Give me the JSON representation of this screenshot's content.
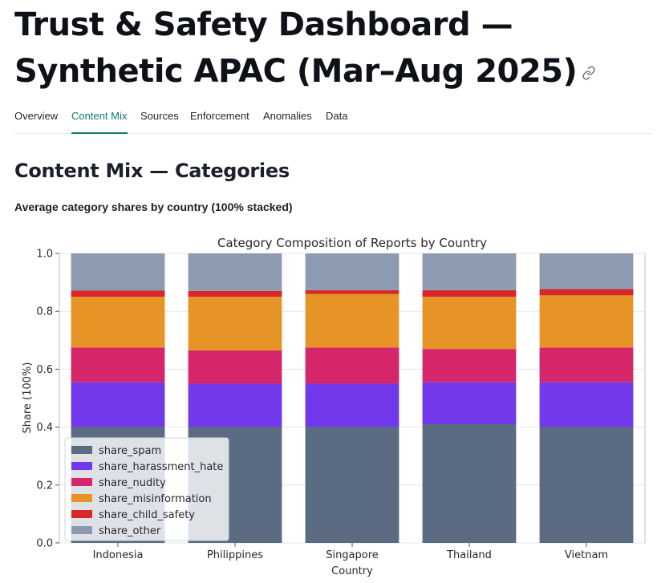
{
  "header": {
    "title": "Trust & Safety Dashboard — Synthetic APAC (Mar–Aug 2025)",
    "link_icon": "link-icon"
  },
  "tabs": [
    {
      "label": "Overview",
      "active": false
    },
    {
      "label": "Content Mix",
      "active": true
    },
    {
      "label": "Sources",
      "active": false
    },
    {
      "label": "Enforcement",
      "active": false
    },
    {
      "label": "Anomalies",
      "active": false
    },
    {
      "label": "Data",
      "active": false
    }
  ],
  "accent_color": "#0f7a6a",
  "section": {
    "title": "Content Mix — Categories",
    "caption": "Average category shares by country (100% stacked)"
  },
  "chart_data": {
    "type": "bar",
    "stacked": true,
    "title": "Category Composition of Reports by Country",
    "xlabel": "Country",
    "ylabel": "Share (100%)",
    "ylim": [
      0,
      1
    ],
    "yticks": [
      "0.0",
      "0.2",
      "0.4",
      "0.6",
      "0.8",
      "1.0"
    ],
    "grid": true,
    "legend_position": "lower-left",
    "categories": [
      "Indonesia",
      "Philippines",
      "Singapore",
      "Thailand",
      "Vietnam"
    ],
    "series": [
      {
        "name": "share_spam",
        "color": "#5a6b82",
        "values": [
          0.4,
          0.4,
          0.4,
          0.41,
          0.4
        ]
      },
      {
        "name": "share_harassment_hate",
        "color": "#7239ea",
        "values": [
          0.155,
          0.15,
          0.15,
          0.145,
          0.155
        ]
      },
      {
        "name": "share_nudity",
        "color": "#d6266b",
        "values": [
          0.12,
          0.115,
          0.125,
          0.115,
          0.12
        ]
      },
      {
        "name": "share_misinformation",
        "color": "#e69425",
        "values": [
          0.175,
          0.185,
          0.185,
          0.18,
          0.18
        ]
      },
      {
        "name": "share_child_safety",
        "color": "#d62828",
        "values": [
          0.022,
          0.02,
          0.013,
          0.023,
          0.022
        ]
      },
      {
        "name": "share_other",
        "color": "#8c9bb0",
        "values": [
          0.128,
          0.13,
          0.127,
          0.127,
          0.123
        ]
      }
    ]
  }
}
